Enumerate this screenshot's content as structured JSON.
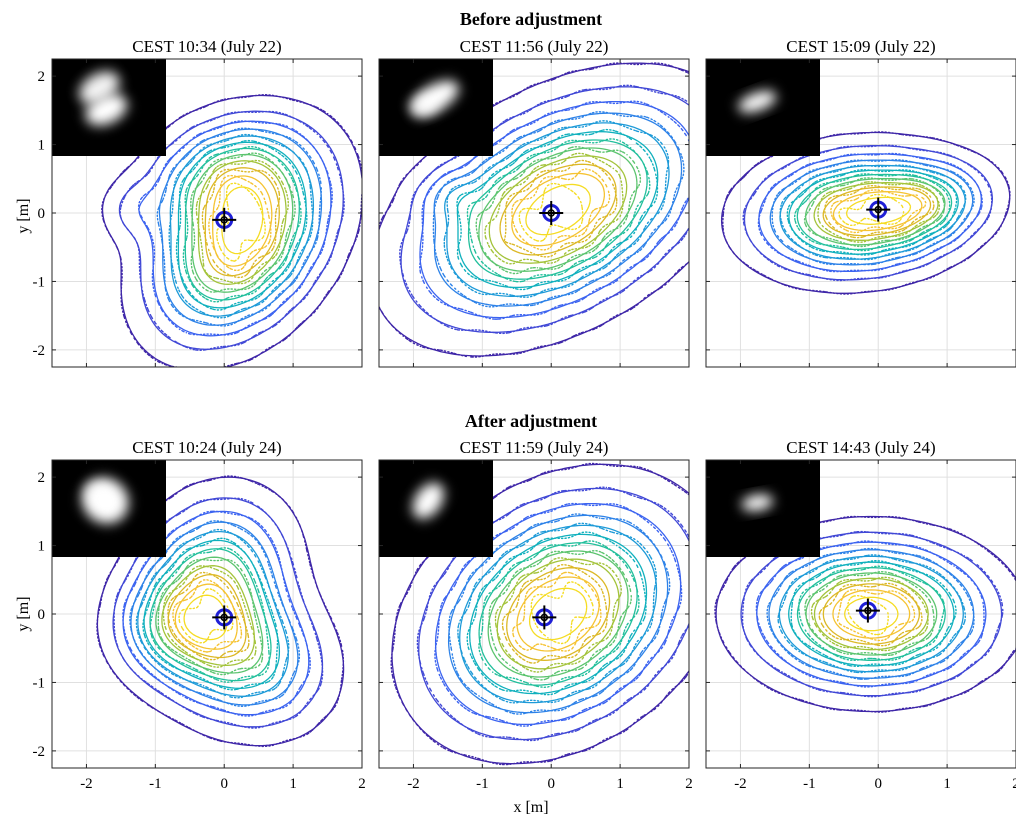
{
  "figure": {
    "row_titles": [
      "Before adjustment",
      "After adjustment"
    ],
    "x_label": "x [m]",
    "y_label": "y [m]"
  },
  "colors": {
    "level_colors": [
      "#3e26a8",
      "#4148d6",
      "#3b63f0",
      "#2d82e8",
      "#1d9ad8",
      "#10b0bd",
      "#22bf9c",
      "#5cc46f",
      "#a3c33a",
      "#dcb826",
      "#f5c332",
      "#f5dc23"
    ],
    "target": "#1f1fd6",
    "crosshair": "#000000"
  },
  "chart_data": [
    {
      "type": "contour",
      "title": "CEST  10:34   (July 22)",
      "xlim": [
        -2.5,
        2
      ],
      "ylim": [
        -2.25,
        2.25
      ],
      "xticks": [
        -2,
        -1,
        0,
        1,
        2
      ],
      "yticks": [
        -2,
        -1,
        0,
        1,
        2
      ],
      "grid": true,
      "inset_image": "camera-spot",
      "inset_spot": "irregular-double",
      "target_marker": {
        "x": 0,
        "y": -0.1
      },
      "lobes": [
        {
          "x": 0.25,
          "y": -0.45,
          "a": 0.9,
          "b": 0.62,
          "angle": 50,
          "w": 1.0
        },
        {
          "x": 0.05,
          "y": 0.55,
          "a": 0.7,
          "b": 0.5,
          "angle": 20,
          "w": 0.55
        },
        {
          "x": -1.35,
          "y": 0.05,
          "a": 0.3,
          "b": 0.3,
          "angle": 0,
          "w": 0.12
        }
      ],
      "levels": 12
    },
    {
      "type": "contour",
      "title": "CEST  11:56   (July 22)",
      "xlim": [
        -2.5,
        2
      ],
      "ylim": [
        -2.25,
        2.25
      ],
      "xticks": [
        -2,
        -1,
        0,
        1,
        2
      ],
      "yticks": [
        -2,
        -1,
        0,
        1,
        2
      ],
      "grid": true,
      "inset_image": "camera-spot",
      "inset_spot": "elongated-blob",
      "target_marker": {
        "x": 0,
        "y": 0
      },
      "lobes": [
        {
          "x": 0.1,
          "y": 0.05,
          "a": 1.25,
          "b": 0.75,
          "angle": 30,
          "w": 1.0
        },
        {
          "x": -1.5,
          "y": 0.25,
          "a": 0.3,
          "b": 0.25,
          "angle": 0,
          "w": 0.12
        }
      ],
      "levels": 12
    },
    {
      "type": "contour",
      "title": "CEST  15:09   (July 22)",
      "xlim": [
        -2.5,
        2
      ],
      "ylim": [
        -2.25,
        2.25
      ],
      "xticks": [
        -2,
        -1,
        0,
        1,
        2
      ],
      "yticks": [
        -2,
        -1,
        0,
        1,
        2
      ],
      "grid": true,
      "inset_image": "camera-spot",
      "inset_spot": "small-elongated",
      "target_marker": {
        "x": 0,
        "y": 0.05
      },
      "lobes": [
        {
          "x": -0.3,
          "y": 0.0,
          "a": 0.85,
          "b": 0.5,
          "angle": 5,
          "w": 1.0
        },
        {
          "x": 0.7,
          "y": 0.15,
          "a": 0.55,
          "b": 0.35,
          "angle": 10,
          "w": 0.4
        }
      ],
      "levels": 12
    },
    {
      "type": "contour",
      "title": "CEST  10:24   (July 24)",
      "xlim": [
        -2.5,
        2
      ],
      "ylim": [
        -2.25,
        2.25
      ],
      "xticks": [
        -2,
        -1,
        0,
        1,
        2
      ],
      "yticks": [
        -2,
        -1,
        0,
        1,
        2
      ],
      "grid": true,
      "inset_image": "camera-spot",
      "inset_spot": "square-blob",
      "target_marker": {
        "x": 0,
        "y": -0.05
      },
      "lobes": [
        {
          "x": -0.2,
          "y": 0.45,
          "a": 0.75,
          "b": 0.6,
          "angle": 60,
          "w": 0.9
        },
        {
          "x": 0.2,
          "y": -0.55,
          "a": 0.75,
          "b": 0.6,
          "angle": -30,
          "w": 0.85
        },
        {
          "x": -0.8,
          "y": -0.2,
          "a": 0.5,
          "b": 0.45,
          "angle": 0,
          "w": 0.35
        }
      ],
      "levels": 12
    },
    {
      "type": "contour",
      "title": "CEST  11:59   (July 24)",
      "xlim": [
        -2.5,
        2
      ],
      "ylim": [
        -2.25,
        2.25
      ],
      "xticks": [
        -2,
        -1,
        0,
        1,
        2
      ],
      "yticks": [
        -2,
        -1,
        0,
        1,
        2
      ],
      "grid": true,
      "inset_image": "camera-spot",
      "inset_spot": "tilted-blob",
      "target_marker": {
        "x": -0.1,
        "y": -0.05
      },
      "lobes": [
        {
          "x": 0.1,
          "y": 0.0,
          "a": 1.1,
          "b": 0.82,
          "angle": 35,
          "w": 1.0
        }
      ],
      "levels": 12
    },
    {
      "type": "contour",
      "title": "CEST  14:43   (July 24)",
      "xlim": [
        -2.5,
        2
      ],
      "ylim": [
        -2.25,
        2.25
      ],
      "xticks": [
        -2,
        -1,
        0,
        1,
        2
      ],
      "yticks": [
        -2,
        -1,
        0,
        1,
        2
      ],
      "grid": true,
      "inset_image": "camera-spot",
      "inset_spot": "small-oval",
      "target_marker": {
        "x": -0.15,
        "y": 0.05
      },
      "lobes": [
        {
          "x": -0.1,
          "y": 0.0,
          "a": 0.95,
          "b": 0.6,
          "angle": 0,
          "w": 1.0
        }
      ],
      "levels": 12
    }
  ]
}
